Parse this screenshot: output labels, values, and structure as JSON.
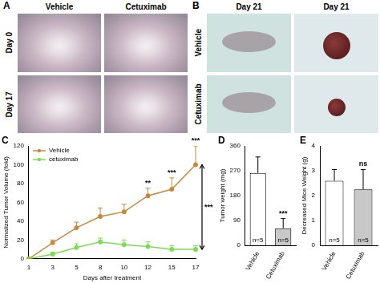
{
  "photo_panels": [
    {
      "panel_label": "A",
      "columns": [
        "Vehicle",
        "Cetuximab"
      ],
      "rows": [
        "Day 0",
        "Day 17"
      ]
    },
    {
      "panel_label": "B",
      "columns": [
        "Day 21",
        "Day 21"
      ],
      "rows": [
        "Vehicle",
        "Cetuximab"
      ]
    }
  ],
  "chart_data": [
    {
      "panel_label": "C",
      "type": "line",
      "x_label": "Days after treatment",
      "y_label": "Normalized Tumor Volume (fold)",
      "categories": [
        "1",
        "3",
        "5",
        "8",
        "10",
        "12",
        "15",
        "17"
      ],
      "series": [
        {
          "name": "Vehicle",
          "color": "#c48a3f",
          "marker": "circle",
          "values": [
            0,
            17,
            33,
            45,
            50,
            67,
            74,
            100
          ],
          "errors": [
            1,
            3,
            6,
            9,
            8,
            8,
            12,
            20
          ]
        },
        {
          "name": "cetuximab",
          "color": "#7ddc55",
          "marker": "circle",
          "values": [
            0,
            5,
            12,
            18,
            15,
            13,
            10,
            10
          ],
          "errors": [
            1,
            2,
            4,
            4,
            5,
            5,
            4,
            4
          ]
        }
      ],
      "ylim": [
        0,
        120
      ],
      "yticks": [
        0,
        20,
        40,
        60,
        80,
        100,
        120
      ],
      "grid": false,
      "legend": "upper left",
      "annotations": [
        {
          "x": "12",
          "text": "**"
        },
        {
          "x": "15",
          "text": "***"
        },
        {
          "x": "17",
          "text": "***"
        },
        {
          "x": "17",
          "text": "***",
          "span": [
            "Vehicle",
            "cetuximab"
          ]
        }
      ]
    },
    {
      "panel_label": "D",
      "type": "bar",
      "y_label": "Tumor weight (mg)",
      "categories": [
        "Vehicle",
        "Cetuximab"
      ],
      "values": [
        262,
        62
      ],
      "errors": [
        58,
        35
      ],
      "colors": [
        "#ffffff",
        "#c8c8c8"
      ],
      "ylim": [
        0,
        360
      ],
      "yticks": [
        0,
        90,
        180,
        270,
        360
      ],
      "grid": false,
      "bar_labels": [
        "n=5",
        "n=5"
      ],
      "annotations": [
        {
          "x": "Cetuximab",
          "text": "***"
        }
      ]
    },
    {
      "panel_label": "E",
      "type": "bar",
      "y_label": "Decreased Mice Weight (g)",
      "categories": [
        "Vehicle",
        "Cetuximab"
      ],
      "values": [
        2.6,
        2.25
      ],
      "errors": [
        0.45,
        0.8
      ],
      "colors": [
        "#ffffff",
        "#c8c8c8"
      ],
      "ylim": [
        0,
        4
      ],
      "yticks": [
        0,
        1,
        2,
        3,
        4
      ],
      "grid": false,
      "bar_labels": [
        "n=5",
        "n=5"
      ],
      "annotations": [
        {
          "x": "Cetuximab",
          "text": "ns"
        }
      ]
    }
  ]
}
